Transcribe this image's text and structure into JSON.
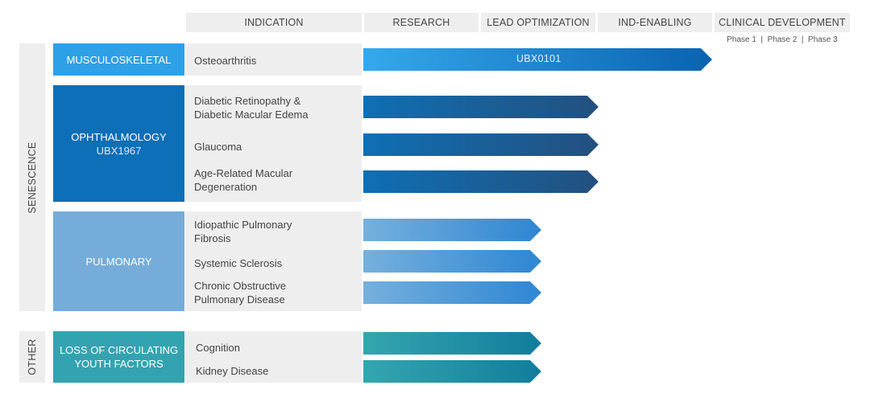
{
  "headers": {
    "indication": "INDICATION",
    "research": "RESEARCH",
    "lead_optimization": "LEAD OPTIMIZATION",
    "ind_enabling": "IND-ENABLING",
    "clinical_development": "CLINICAL DEVELOPMENT",
    "phases": "Phase 1  |  Phase 2  |  Phase 3"
  },
  "groups": {
    "senescence": "SENESCENCE",
    "other": "OTHER"
  },
  "categories": {
    "musculoskeletal": {
      "label": "MUSCULOSKELETAL",
      "color": "#2ea0e6"
    },
    "ophthalmology": {
      "label": "OPHTHALMOLOGY",
      "sublabel": "UBX1967",
      "color": "#0c6fb7"
    },
    "pulmonary": {
      "label": "PULMONARY",
      "color": "#75acd9"
    },
    "youth_factors": {
      "label_line1": "LOSS OF CIRCULATING",
      "label_line2": "YOUTH FACTORS",
      "color": "#34a3b1"
    }
  },
  "indications": {
    "osteoarthritis": "Osteoarthritis",
    "dr_line1": "Diabetic Retinopathy &",
    "dr_line2": "Diabetic Macular Edema",
    "glaucoma": "Glaucoma",
    "amd_line1": "Age-Related Macular",
    "amd_line2": "Degeneration",
    "ipf_line1": "Idiopathic Pulmonary",
    "ipf_line2": "Fibrosis",
    "sclerosis": "Systemic Sclerosis",
    "copd_line1": "Chronic Obstructive",
    "copd_line2": "Pulmonary Disease",
    "cognition": "Cognition",
    "kidney": "Kidney Disease"
  },
  "programs": [
    {
      "indication": "Osteoarthritis",
      "stage": "Clinical Development",
      "label": "UBX0101",
      "color_from": "#35a8ec",
      "color_to": "#0a63b0"
    },
    {
      "indication": "Diabetic Retinopathy & Diabetic Macular Edema",
      "stage": "IND-Enabling",
      "color_from": "#0f6fb4",
      "color_to": "#23507f"
    },
    {
      "indication": "Glaucoma",
      "stage": "IND-Enabling",
      "color_from": "#0f6fb4",
      "color_to": "#23507f"
    },
    {
      "indication": "Age-Related Macular Degeneration",
      "stage": "IND-Enabling",
      "color_from": "#0f6fb4",
      "color_to": "#23507f"
    },
    {
      "indication": "Idiopathic Pulmonary Fibrosis",
      "stage": "Lead Optimization",
      "color_from": "#76b0dd",
      "color_to": "#2e86d3"
    },
    {
      "indication": "Systemic Sclerosis",
      "stage": "Lead Optimization",
      "color_from": "#76b0dd",
      "color_to": "#2e86d3"
    },
    {
      "indication": "Chronic Obstructive Pulmonary Disease",
      "stage": "Lead Optimization",
      "color_from": "#76b0dd",
      "color_to": "#2e86d3"
    },
    {
      "indication": "Cognition",
      "stage": "Lead Optimization",
      "color_from": "#34a6af",
      "color_to": "#117d9c"
    },
    {
      "indication": "Kidney Disease",
      "stage": "Lead Optimization",
      "color_from": "#34a6af",
      "color_to": "#117d9c"
    }
  ],
  "bar_label_ubx0101": "UBX0101"
}
